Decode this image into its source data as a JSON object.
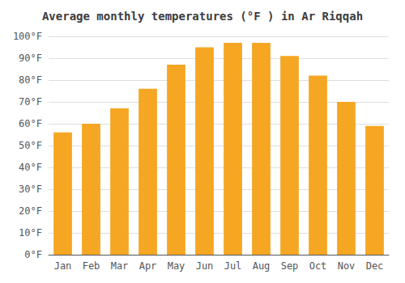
{
  "chart_data": {
    "type": "bar",
    "title": "Average monthly temperatures (°F ) in Ar Riqqah",
    "categories": [
      "Jan",
      "Feb",
      "Mar",
      "Apr",
      "May",
      "Jun",
      "Jul",
      "Aug",
      "Sep",
      "Oct",
      "Nov",
      "Dec"
    ],
    "values": [
      56,
      60,
      67,
      76,
      87,
      95,
      97,
      97,
      91,
      82,
      70,
      59
    ],
    "color": "#F5A623",
    "ylim": [
      0,
      100
    ],
    "yticks": [
      {
        "value": 0,
        "label": "0°F"
      },
      {
        "value": 10,
        "label": "10°F"
      },
      {
        "value": 20,
        "label": "20°F"
      },
      {
        "value": 30,
        "label": "30°F"
      },
      {
        "value": 40,
        "label": "40°F"
      },
      {
        "value": 50,
        "label": "50°F"
      },
      {
        "value": 60,
        "label": "60°F"
      },
      {
        "value": 70,
        "label": "70°F"
      },
      {
        "value": 80,
        "label": "80°F"
      },
      {
        "value": 90,
        "label": "90°F"
      },
      {
        "value": 100,
        "label": "100°F"
      }
    ],
    "grid": true
  }
}
